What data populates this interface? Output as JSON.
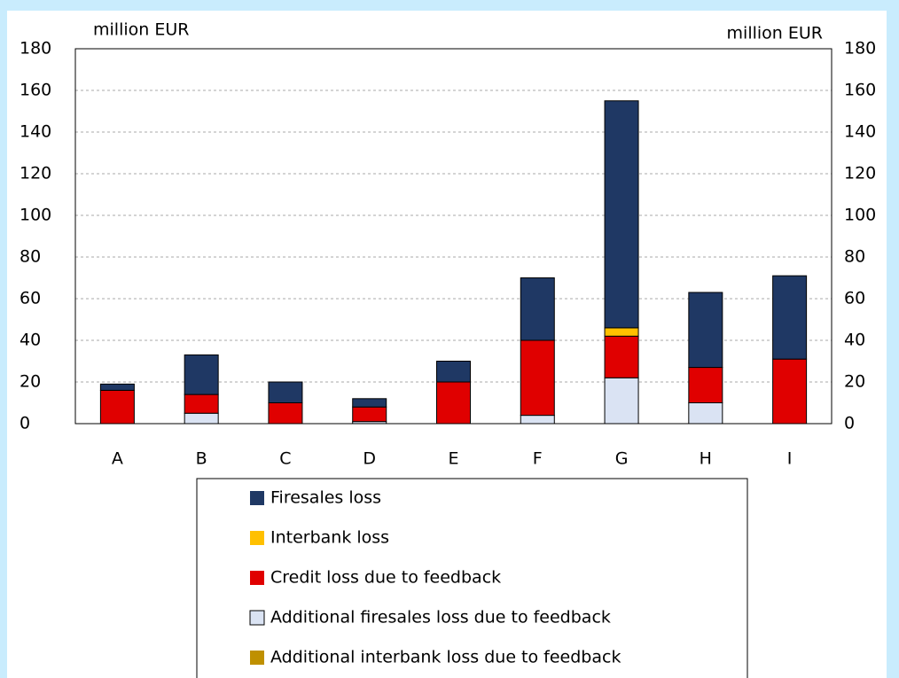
{
  "chart_data": {
    "type": "stacked_bar",
    "y_label": "million EUR",
    "y2_label": "million EUR",
    "categories": [
      "A",
      "B",
      "C",
      "D",
      "E",
      "F",
      "G",
      "H",
      "I"
    ],
    "series": [
      {
        "name": "Firesales loss",
        "color": "#1f3864",
        "values": [
          3,
          19,
          10,
          4,
          10,
          30,
          109,
          36,
          40
        ]
      },
      {
        "name": "Interbank loss",
        "color": "#ffc000",
        "values": [
          0,
          0,
          0,
          0,
          0,
          0,
          4,
          0,
          0
        ]
      },
      {
        "name": "Credit loss due to feedback",
        "color": "#e00000",
        "values": [
          16,
          9,
          10,
          7,
          20,
          36,
          20,
          17,
          31
        ]
      },
      {
        "name": "Additional firesales loss due to feedback",
        "color": "#dae3f3",
        "values": [
          0,
          5,
          0,
          1,
          0,
          4,
          22,
          10,
          0
        ]
      },
      {
        "name": "Additional interbank loss due to feedback",
        "color": "#bf9000",
        "values": [
          0,
          0,
          0,
          0,
          0,
          0,
          0,
          0,
          0
        ]
      }
    ],
    "ylim": [
      0,
      180
    ],
    "yticks": [
      0,
      20,
      40,
      60,
      80,
      100,
      120,
      140,
      160,
      180
    ],
    "y2lim": [
      0,
      180
    ],
    "y2ticks": [
      0,
      20,
      40,
      60,
      80,
      100,
      120,
      140,
      160,
      180
    ],
    "grid": true
  }
}
